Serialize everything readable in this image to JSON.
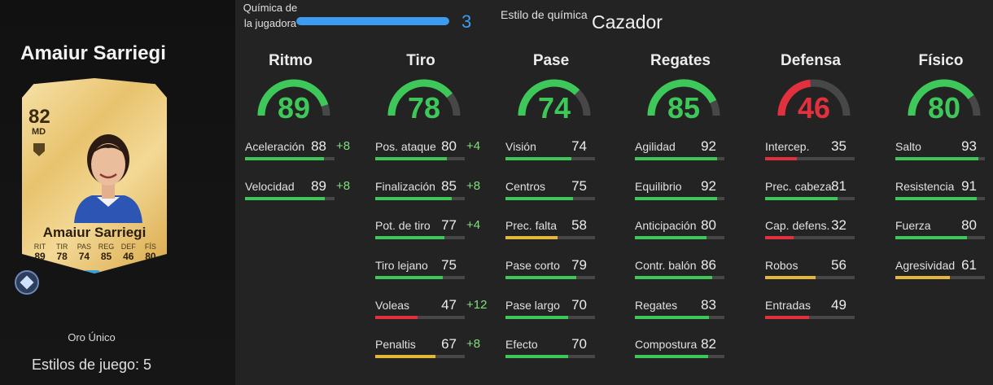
{
  "player": {
    "name": "Amaiur Sarriegi",
    "card": {
      "rating": "82",
      "position": "MD",
      "name": "Amaiur Sarriegi",
      "stats": [
        {
          "label": "RIT",
          "value": "89"
        },
        {
          "label": "TIR",
          "value": "78"
        },
        {
          "label": "PAS",
          "value": "74"
        },
        {
          "label": "REG",
          "value": "85"
        },
        {
          "label": "DEF",
          "value": "46"
        },
        {
          "label": "FÍS",
          "value": "80"
        }
      ]
    },
    "card_type": "Oro Único",
    "playstyles_label": "Estilos de juego: 5"
  },
  "chemistry": {
    "label": "Química de la jugadora",
    "value": "3",
    "max": 3,
    "style_label": "Estilo de química",
    "style_value": "Cazador",
    "bar_color": "#3d9bf2"
  },
  "colors": {
    "high": "#3ec85a",
    "medium": "#e2b73a",
    "low": "#e3303e",
    "track": "#474747"
  },
  "categories": [
    {
      "title": "Ritmo",
      "value": 89,
      "stats": [
        {
          "label": "Aceleración",
          "value": 88,
          "boost": "+8"
        },
        {
          "label": "Velocidad",
          "value": 89,
          "boost": "+8"
        }
      ]
    },
    {
      "title": "Tiro",
      "value": 78,
      "stats": [
        {
          "label": "Pos. ataque",
          "value": 80,
          "boost": "+4"
        },
        {
          "label": "Finalización",
          "value": 85,
          "boost": "+8"
        },
        {
          "label": "Pot. de tiro",
          "value": 77,
          "boost": "+4"
        },
        {
          "label": "Tiro lejano",
          "value": 75,
          "boost": ""
        },
        {
          "label": "Voleas",
          "value": 47,
          "boost": "+12"
        },
        {
          "label": "Penaltis",
          "value": 67,
          "boost": "+8"
        }
      ]
    },
    {
      "title": "Pase",
      "value": 74,
      "stats": [
        {
          "label": "Visión",
          "value": 74,
          "boost": ""
        },
        {
          "label": "Centros",
          "value": 75,
          "boost": ""
        },
        {
          "label": "Prec. falta",
          "value": 58,
          "boost": ""
        },
        {
          "label": "Pase corto",
          "value": 79,
          "boost": ""
        },
        {
          "label": "Pase largo",
          "value": 70,
          "boost": ""
        },
        {
          "label": "Efecto",
          "value": 70,
          "boost": ""
        }
      ]
    },
    {
      "title": "Regates",
      "value": 85,
      "stats": [
        {
          "label": "Agilidad",
          "value": 92,
          "boost": ""
        },
        {
          "label": "Equilibrio",
          "value": 92,
          "boost": ""
        },
        {
          "label": "Anticipación",
          "value": 80,
          "boost": ""
        },
        {
          "label": "Contr. balón",
          "value": 86,
          "boost": ""
        },
        {
          "label": "Regates",
          "value": 83,
          "boost": ""
        },
        {
          "label": "Compostura",
          "value": 82,
          "boost": ""
        }
      ]
    },
    {
      "title": "Defensa",
      "value": 46,
      "stats": [
        {
          "label": "Intercep.",
          "value": 35,
          "boost": ""
        },
        {
          "label": "Prec. cabeza",
          "value": 81,
          "boost": ""
        },
        {
          "label": "Cap. defens.",
          "value": 32,
          "boost": ""
        },
        {
          "label": "Robos",
          "value": 56,
          "boost": ""
        },
        {
          "label": "Entradas",
          "value": 49,
          "boost": ""
        }
      ]
    },
    {
      "title": "Físico",
      "value": 80,
      "stats": [
        {
          "label": "Salto",
          "value": 93,
          "boost": ""
        },
        {
          "label": "Resistencia",
          "value": 91,
          "boost": ""
        },
        {
          "label": "Fuerza",
          "value": 80,
          "boost": ""
        },
        {
          "label": "Agresividad",
          "value": 61,
          "boost": ""
        }
      ]
    }
  ]
}
